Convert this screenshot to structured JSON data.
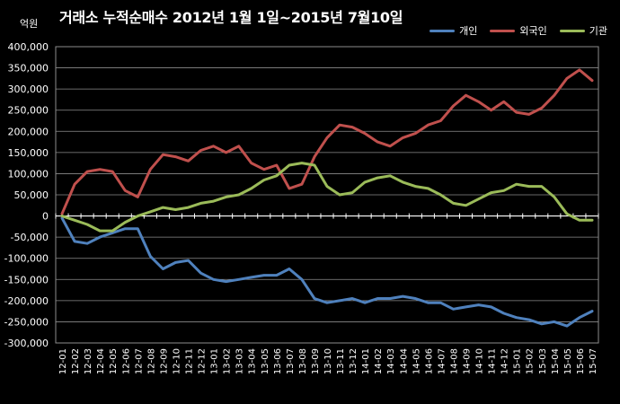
{
  "chart_data": {
    "type": "line",
    "title": "거래소 누적순매수 2012년 1월 1일~2015년 7월10일",
    "ylabel": "억원",
    "ylim": [
      -300000,
      400000
    ],
    "yticks": [
      400000,
      350000,
      300000,
      250000,
      200000,
      150000,
      100000,
      50000,
      0,
      -50000,
      -100000,
      -150000,
      -200000,
      -250000,
      -300000
    ],
    "ytick_labels": [
      "400,000",
      "350,000",
      "300,000",
      "250,000",
      "200,000",
      "150,000",
      "100,000",
      "50,000",
      "0",
      "-50,000",
      "-100,000",
      "-150,000",
      "-200,000",
      "-250,000",
      "-300,000"
    ],
    "categories": [
      "12-01",
      "12-02",
      "12-03",
      "12-04",
      "12-05",
      "12-06",
      "12-07",
      "12-08",
      "12-09",
      "12-10",
      "12-11",
      "12-12",
      "13-01",
      "13-02",
      "13-03",
      "13-04",
      "13-05",
      "13-06",
      "13-07",
      "13-08",
      "13-09",
      "13-10",
      "13-11",
      "13-12",
      "14-01",
      "14-02",
      "14-03",
      "14-04",
      "14-05",
      "14-06",
      "14-07",
      "14-08",
      "14-09",
      "14-10",
      "14-11",
      "14-12",
      "15-01",
      "15-02",
      "15-03",
      "15-04",
      "15-05",
      "15-06",
      "15-07"
    ],
    "grid": true,
    "legend_position": "top-right",
    "series": [
      {
        "name": "개인",
        "color": "#4f81bd",
        "values": [
          -5000,
          -60000,
          -65000,
          -50000,
          -40000,
          -30000,
          -30000,
          -95000,
          -125000,
          -110000,
          -105000,
          -135000,
          -150000,
          -155000,
          -150000,
          -145000,
          -140000,
          -140000,
          -125000,
          -150000,
          -195000,
          -205000,
          -200000,
          -195000,
          -205000,
          -195000,
          -195000,
          -190000,
          -195000,
          -205000,
          -205000,
          -220000,
          -215000,
          -210000,
          -215000,
          -230000,
          -240000,
          -245000,
          -255000,
          -250000,
          -260000,
          -240000,
          -225000
        ]
      },
      {
        "name": "외국인",
        "color": "#c0504d",
        "values": [
          5000,
          75000,
          105000,
          110000,
          105000,
          60000,
          45000,
          110000,
          145000,
          140000,
          130000,
          155000,
          165000,
          150000,
          165000,
          125000,
          110000,
          120000,
          65000,
          75000,
          140000,
          185000,
          215000,
          210000,
          195000,
          175000,
          165000,
          185000,
          195000,
          215000,
          225000,
          260000,
          285000,
          270000,
          250000,
          270000,
          245000,
          240000,
          255000,
          285000,
          325000,
          345000,
          320000
        ]
      },
      {
        "name": "기관",
        "color": "#9bbb59",
        "values": [
          0,
          -10000,
          -20000,
          -35000,
          -35000,
          -15000,
          0,
          10000,
          20000,
          15000,
          20000,
          30000,
          35000,
          45000,
          50000,
          65000,
          85000,
          95000,
          120000,
          125000,
          120000,
          70000,
          50000,
          55000,
          80000,
          90000,
          95000,
          80000,
          70000,
          65000,
          50000,
          30000,
          25000,
          40000,
          55000,
          60000,
          75000,
          70000,
          70000,
          45000,
          5000,
          -10000,
          -10000
        ]
      }
    ]
  }
}
